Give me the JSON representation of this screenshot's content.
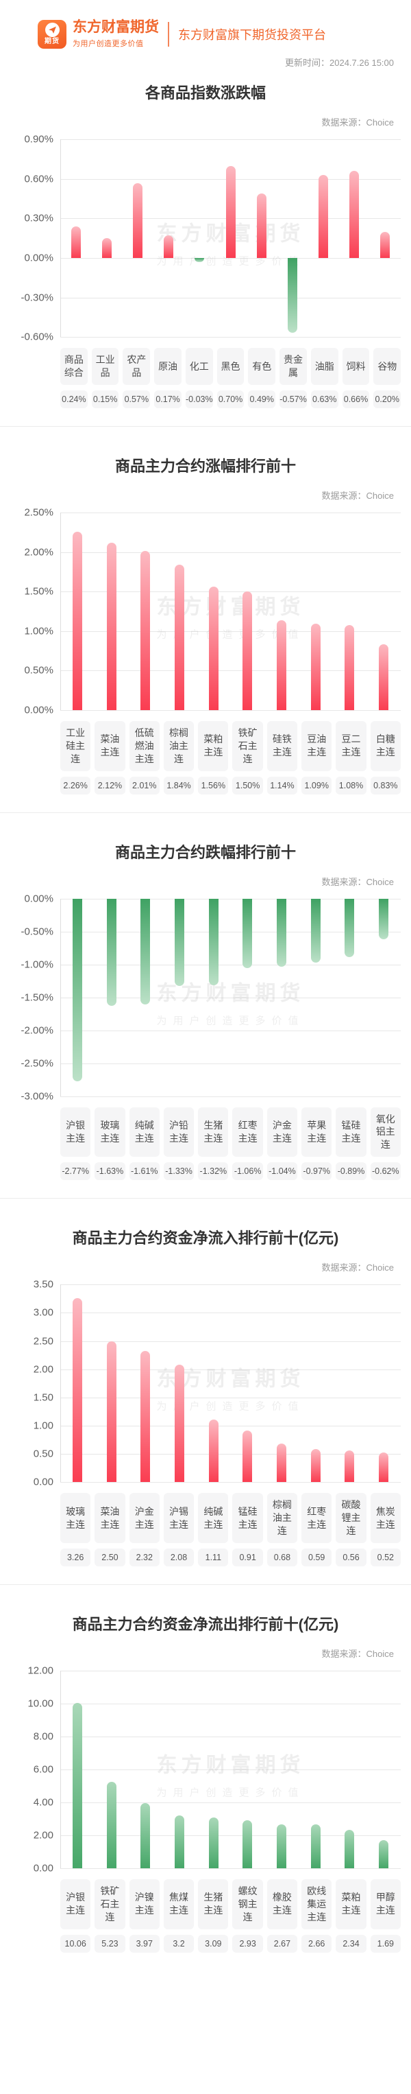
{
  "header": {
    "brand_name": "东方财富期货",
    "brand_tagline": "为用户创造更多价值",
    "logo_badge": "期货",
    "platform_text": "东方财富旗下期货投资平台",
    "update_time": "更新时间：2024.7.26 15:00"
  },
  "icons": {
    "logo": "paper-plane-futures-logo-icon"
  },
  "source_label": "数据来源：Choice",
  "watermark": {
    "line1": "东方财富期货",
    "line2": "为用户创造更多价值"
  },
  "colors": {
    "brand_orange": "#f0662c",
    "bar_red_strong": "#fa3d51",
    "bar_red_light": "#fcb9c1",
    "bar_green_strong": "#3fa263",
    "bar_green_light": "#bce1c8",
    "gridline": "#e7e7e7"
  },
  "chart_data": [
    {
      "type": "bar",
      "title": "各商品指数涨跌幅",
      "bar_color": "by-sign",
      "grid": true,
      "legend_position": "none",
      "ylim": [
        -0.6,
        0.9
      ],
      "y_ticks": [
        {
          "label": "0.90%",
          "value": 0.9
        },
        {
          "label": "0.60%",
          "value": 0.6
        },
        {
          "label": "0.30%",
          "value": 0.3
        },
        {
          "label": "0.00%",
          "value": 0.0
        },
        {
          "label": "-0.30%",
          "value": -0.3
        },
        {
          "label": "-0.60%",
          "value": -0.6
        }
      ],
      "categories": [
        "商品综合",
        "工业品",
        "农产品",
        "原油",
        "化工",
        "黑色",
        "有色",
        "贵金属",
        "油脂",
        "饲料",
        "谷物"
      ],
      "values": [
        0.24,
        0.15,
        0.57,
        0.17,
        -0.03,
        0.7,
        0.49,
        -0.57,
        0.63,
        0.66,
        0.2
      ],
      "value_labels": [
        "0.24%",
        "0.15%",
        "0.57%",
        "0.17%",
        "-0.03%",
        "0.70%",
        "0.49%",
        "-0.57%",
        "0.63%",
        "0.66%",
        "0.20%"
      ]
    },
    {
      "type": "bar",
      "title": "商品主力合约涨幅排行前十",
      "bar_color": "red",
      "grid": true,
      "legend_position": "none",
      "ylim": [
        0,
        2.5
      ],
      "y_ticks": [
        {
          "label": "2.50%",
          "value": 2.5
        },
        {
          "label": "2.00%",
          "value": 2.0
        },
        {
          "label": "1.50%",
          "value": 1.5
        },
        {
          "label": "1.00%",
          "value": 1.0
        },
        {
          "label": "0.50%",
          "value": 0.5
        },
        {
          "label": "0.00%",
          "value": 0.0
        }
      ],
      "categories": [
        "工业硅主连",
        "菜油主连",
        "低硫燃油主连",
        "棕榈油主连",
        "菜粕主连",
        "铁矿石主连",
        "硅铁主连",
        "豆油主连",
        "豆二主连",
        "白糖主连"
      ],
      "values": [
        2.26,
        2.12,
        2.01,
        1.84,
        1.56,
        1.5,
        1.14,
        1.09,
        1.08,
        0.83
      ],
      "value_labels": [
        "2.26%",
        "2.12%",
        "2.01%",
        "1.84%",
        "1.56%",
        "1.50%",
        "1.14%",
        "1.09%",
        "1.08%",
        "0.83%"
      ]
    },
    {
      "type": "bar",
      "title": "商品主力合约跌幅排行前十",
      "bar_color": "green",
      "grid": true,
      "legend_position": "none",
      "ylim": [
        -3.0,
        0
      ],
      "y_ticks": [
        {
          "label": "0.00%",
          "value": 0.0
        },
        {
          "label": "-0.50%",
          "value": -0.5
        },
        {
          "label": "-1.00%",
          "value": -1.0
        },
        {
          "label": "-1.50%",
          "value": -1.5
        },
        {
          "label": "-2.00%",
          "value": -2.0
        },
        {
          "label": "-2.50%",
          "value": -2.5
        },
        {
          "label": "-3.00%",
          "value": -3.0
        }
      ],
      "categories": [
        "沪银主连",
        "玻璃主连",
        "纯碱主连",
        "沪铅主连",
        "生猪主连",
        "红枣主连",
        "沪金主连",
        "苹果主连",
        "锰硅主连",
        "氧化铝主连"
      ],
      "values": [
        -2.77,
        -1.63,
        -1.61,
        -1.33,
        -1.32,
        -1.06,
        -1.04,
        -0.97,
        -0.89,
        -0.62
      ],
      "value_labels": [
        "-2.77%",
        "-1.63%",
        "-1.61%",
        "-1.33%",
        "-1.32%",
        "-1.06%",
        "-1.04%",
        "-0.97%",
        "-0.89%",
        "-0.62%"
      ]
    },
    {
      "type": "bar",
      "title": "商品主力合约资金净流入排行前十(亿元)",
      "bar_color": "red",
      "grid": true,
      "legend_position": "none",
      "ylim": [
        0,
        3.5
      ],
      "y_ticks": [
        {
          "label": "3.50",
          "value": 3.5
        },
        {
          "label": "3.00",
          "value": 3.0
        },
        {
          "label": "2.50",
          "value": 2.5
        },
        {
          "label": "2.00",
          "value": 2.0
        },
        {
          "label": "1.50",
          "value": 1.5
        },
        {
          "label": "1.00",
          "value": 1.0
        },
        {
          "label": "0.50",
          "value": 0.5
        },
        {
          "label": "0.00",
          "value": 0.0
        }
      ],
      "categories": [
        "玻璃主连",
        "菜油主连",
        "沪金主连",
        "沪锡主连",
        "纯碱主连",
        "锰硅主连",
        "棕榈油主连",
        "红枣主连",
        "碳酸锂主连",
        "焦炭主连"
      ],
      "values": [
        3.26,
        2.5,
        2.32,
        2.08,
        1.11,
        0.91,
        0.68,
        0.59,
        0.56,
        0.52
      ],
      "value_labels": [
        "3.26",
        "2.50",
        "2.32",
        "2.08",
        "1.11",
        "0.91",
        "0.68",
        "0.59",
        "0.56",
        "0.52"
      ]
    },
    {
      "type": "bar",
      "title": "商品主力合约资金净流出排行前十(亿元)",
      "bar_color": "green",
      "grid": true,
      "legend_position": "none",
      "ylim": [
        0,
        12.0
      ],
      "y_ticks": [
        {
          "label": "12.00",
          "value": 12.0
        },
        {
          "label": "10.00",
          "value": 10.0
        },
        {
          "label": "8.00",
          "value": 8.0
        },
        {
          "label": "6.00",
          "value": 6.0
        },
        {
          "label": "4.00",
          "value": 4.0
        },
        {
          "label": "2.00",
          "value": 2.0
        },
        {
          "label": "0.00",
          "value": 0.0
        }
      ],
      "categories": [
        "沪银主连",
        "铁矿石主连",
        "沪镍主连",
        "焦煤主连",
        "生猪主连",
        "螺纹钢主连",
        "橡胶主连",
        "欧线集运主连",
        "菜粕主连",
        "甲醇主连"
      ],
      "values": [
        10.06,
        5.23,
        3.97,
        3.2,
        3.09,
        2.93,
        2.67,
        2.66,
        2.34,
        1.69
      ],
      "value_labels": [
        "10.06",
        "5.23",
        "3.97",
        "3.2",
        "3.09",
        "2.93",
        "2.67",
        "2.66",
        "2.34",
        "1.69"
      ]
    }
  ]
}
